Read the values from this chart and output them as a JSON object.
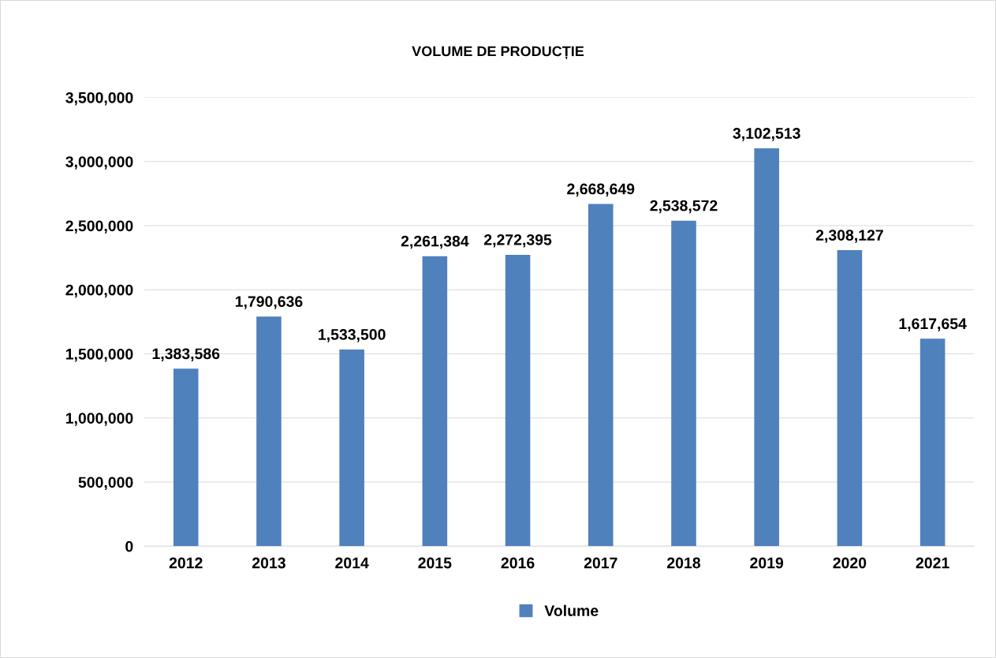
{
  "chart_data": {
    "type": "bar",
    "title": "VOLUME DE PRODUCȚIE",
    "categories": [
      "2012",
      "2013",
      "2014",
      "2015",
      "2016",
      "2017",
      "2018",
      "2019",
      "2020",
      "2021"
    ],
    "series": [
      {
        "name": "Volume",
        "color": "#4f81bd",
        "values": [
          1383586,
          1790636,
          1533500,
          2261384,
          2272395,
          2668649,
          2538572,
          3102513,
          2308127,
          1617654
        ],
        "value_labels": [
          "1,383,586",
          "1,790,636",
          "1,533,500",
          "2,261,384",
          "2,272,395",
          "2,668,649",
          "2,538,572",
          "3,102,513",
          "2,308,127",
          "1,617,654"
        ]
      }
    ],
    "ylim": [
      0,
      3500000
    ],
    "yticks": [
      {
        "value": 0,
        "label": "0"
      },
      {
        "value": 500000,
        "label": "500,000"
      },
      {
        "value": 1000000,
        "label": "1,000,000"
      },
      {
        "value": 1500000,
        "label": "1,500,000"
      },
      {
        "value": 2000000,
        "label": "2,000,000"
      },
      {
        "value": 2500000,
        "label": "2,500,000"
      },
      {
        "value": 3000000,
        "label": "3,000,000"
      },
      {
        "value": 3500000,
        "label": "3,500,000"
      }
    ],
    "grid": "y",
    "legend": "bottom"
  }
}
